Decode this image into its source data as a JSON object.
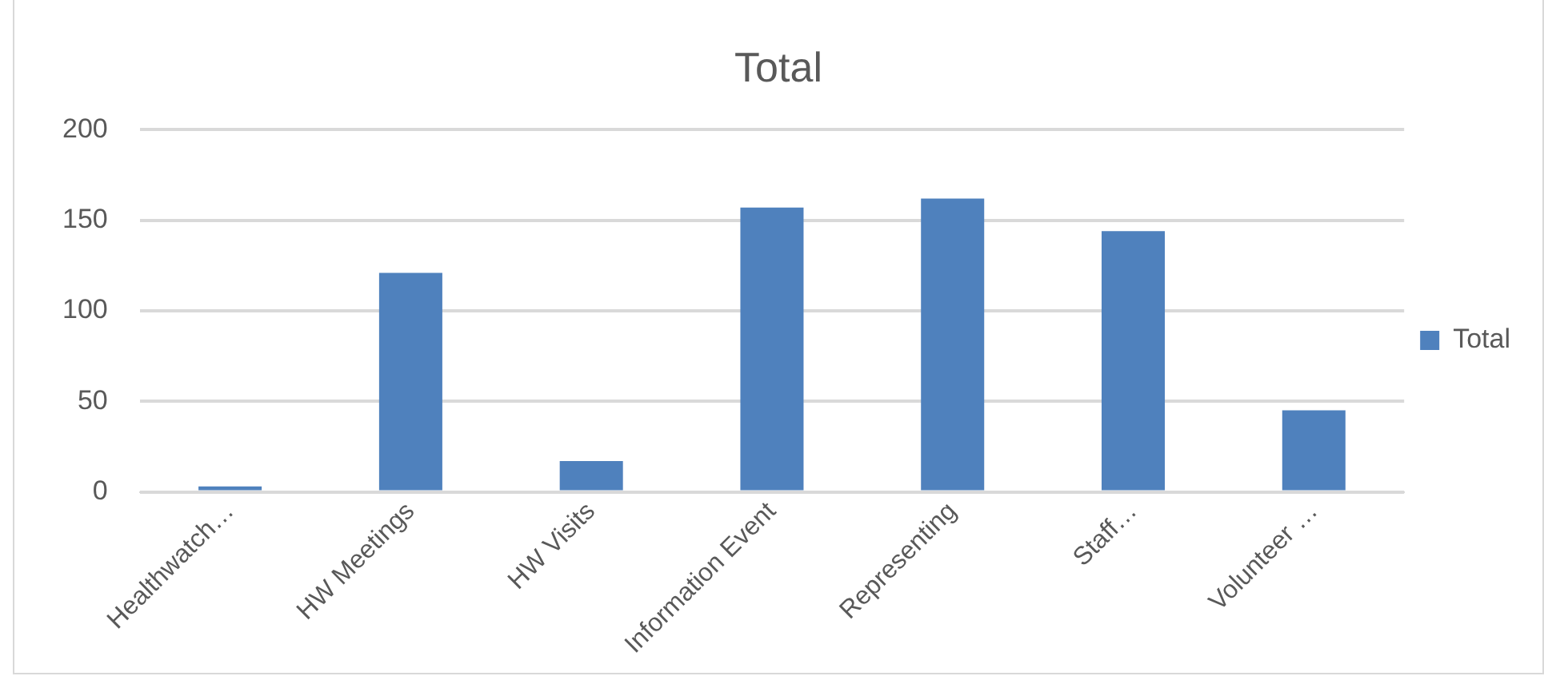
{
  "chart_data": {
    "type": "bar",
    "title": "Total",
    "categories": [
      "Healthwatch…",
      "HW Meetings",
      "HW Visits",
      "Information Event",
      "Representing",
      "Staff…",
      "Volunteer …"
    ],
    "series": [
      {
        "name": "Total",
        "color": "#4f81bd",
        "values": [
          3,
          121,
          17,
          157,
          162,
          144,
          45
        ]
      }
    ],
    "ylim": [
      0,
      200
    ],
    "yticks": [
      0,
      50,
      100,
      150,
      200
    ],
    "grid": "y",
    "legend": "right"
  }
}
